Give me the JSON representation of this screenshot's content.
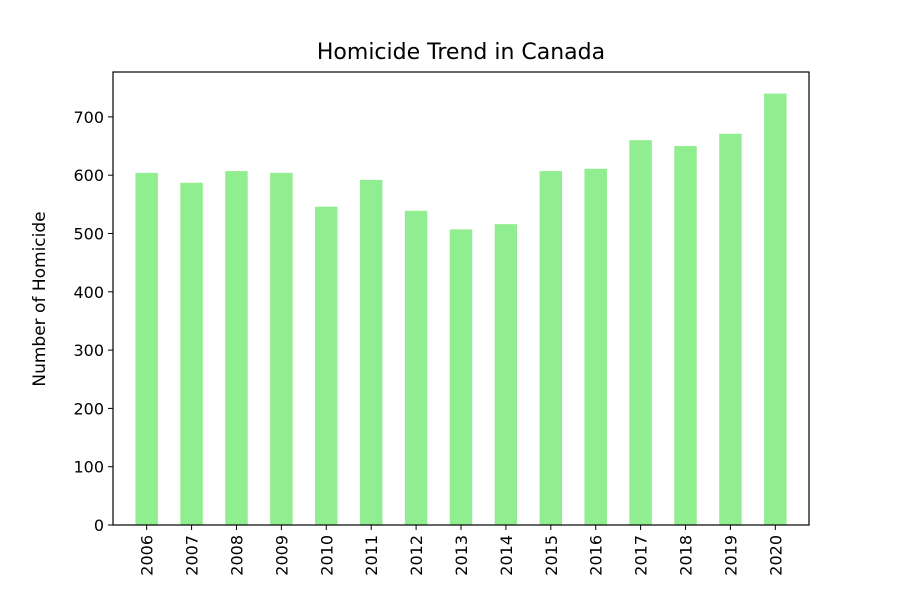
{
  "chart_data": {
    "type": "bar",
    "title": "Homicide Trend in Canada",
    "xlabel": "",
    "ylabel": "Number of Homicide",
    "categories": [
      "2006",
      "2007",
      "2008",
      "2009",
      "2010",
      "2011",
      "2012",
      "2013",
      "2014",
      "2015",
      "2016",
      "2017",
      "2018",
      "2019",
      "2020"
    ],
    "values": [
      604,
      587,
      607,
      604,
      546,
      592,
      539,
      507,
      516,
      607,
      611,
      660,
      650,
      671,
      740
    ],
    "ylim": [
      0,
      777
    ],
    "yticks": [
      0,
      100,
      200,
      300,
      400,
      500,
      600,
      700
    ],
    "bar_color": "#90ee90",
    "grid": false,
    "legend": "none"
  }
}
